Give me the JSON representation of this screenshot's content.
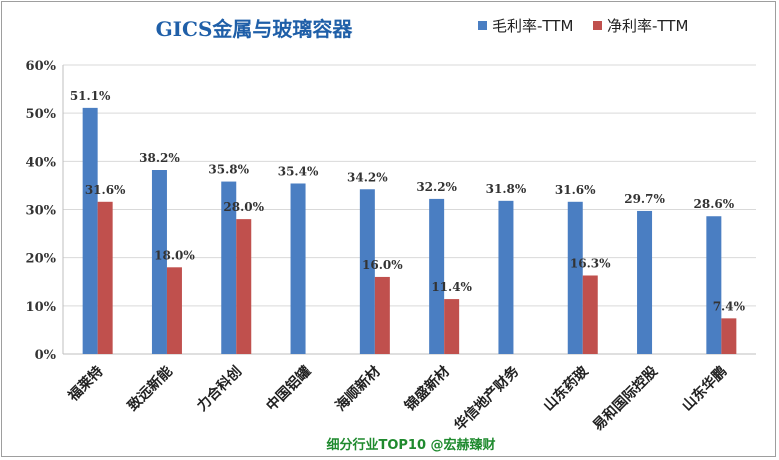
{
  "chart_data": {
    "type": "bar",
    "title": "GICS金属与玻璃容器",
    "categories": [
      "福莱特",
      "致远新能",
      "力合科创",
      "中国铝罐",
      "海顺新材",
      "锦盛新材",
      "华信地产财务",
      "山东药玻",
      "易和国际控股",
      "山东华鹏"
    ],
    "series": [
      {
        "name": "毛利率-TTM",
        "color": "#4a7ec2",
        "values": [
          51.1,
          38.2,
          35.8,
          35.4,
          34.2,
          32.2,
          31.8,
          31.6,
          29.7,
          28.6
        ],
        "labels": [
          "51.1%",
          "38.2%",
          "35.8%",
          "35.4%",
          "34.2%",
          "32.2%",
          "31.8%",
          "31.6%",
          "29.7%",
          "28.6%"
        ]
      },
      {
        "name": "净利率-TTM",
        "color": "#c0504d",
        "values": [
          31.6,
          18.0,
          28.0,
          null,
          16.0,
          11.4,
          null,
          16.3,
          null,
          7.4
        ],
        "labels": [
          "31.6%",
          "18.0%",
          "28.0%",
          null,
          "16.0%",
          "11.4%",
          null,
          "16.3%",
          null,
          "7.4%"
        ]
      }
    ],
    "ylim": [
      0,
      60
    ],
    "yticks": [
      0,
      10,
      20,
      30,
      40,
      50,
      60
    ],
    "ytick_labels": [
      "0%",
      "10%",
      "20%",
      "30%",
      "40%",
      "50%",
      "60%"
    ],
    "xlabel": "",
    "ylabel": "",
    "grid": true,
    "legend_position": "top-right",
    "footer": "细分行业TOP10 @宏赫臻财"
  }
}
